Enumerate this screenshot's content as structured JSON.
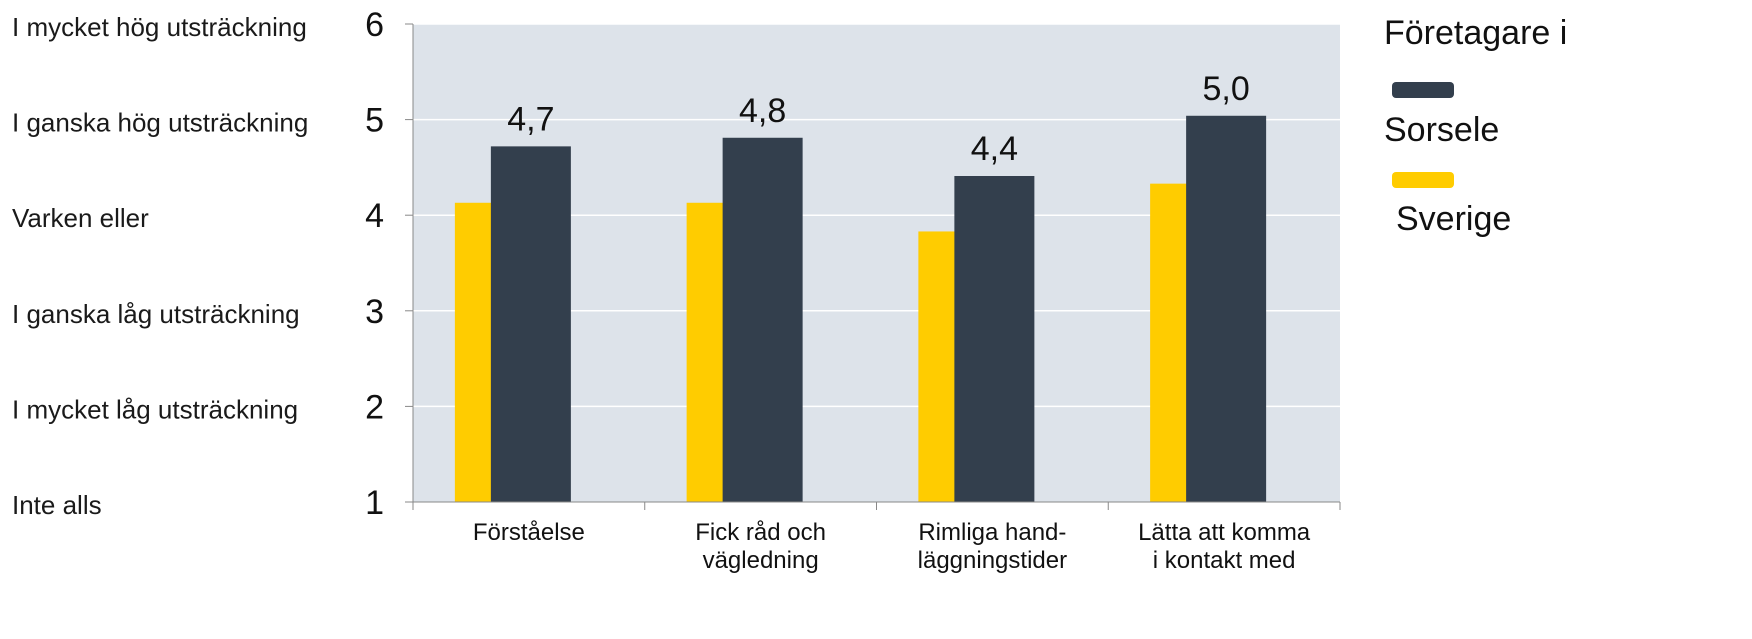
{
  "chart_data": {
    "type": "bar",
    "y_scale_labels": [
      "Inte alls",
      "I mycket låg utsträckning",
      "I ganska låg utsträckning",
      "Varken eller",
      "I ganska hög utsträckning",
      "I mycket hög utsträckning"
    ],
    "yticks": [
      1,
      2,
      3,
      4,
      5,
      6
    ],
    "ylim": [
      1,
      6
    ],
    "categories": [
      [
        "Förståelse"
      ],
      [
        "Fick råd och",
        "vägledning"
      ],
      [
        "Rimliga hand-",
        "läggningstider"
      ],
      [
        "Lätta att komma",
        "i kontakt med"
      ]
    ],
    "series": [
      {
        "name": "Sverige",
        "color": "#FFCC00",
        "values": [
          4.13,
          4.13,
          3.83,
          4.33
        ]
      },
      {
        "name": "Sorsele",
        "color": "#333F4D",
        "values": [
          4.72,
          4.81,
          4.41,
          5.04
        ]
      }
    ],
    "data_labels": [
      "4,7",
      "4,8",
      "4,4",
      "5,0"
    ],
    "legend_title": "Företagare i",
    "legend_position": "right",
    "grid": true,
    "plot_background": "#DDE3EA"
  }
}
